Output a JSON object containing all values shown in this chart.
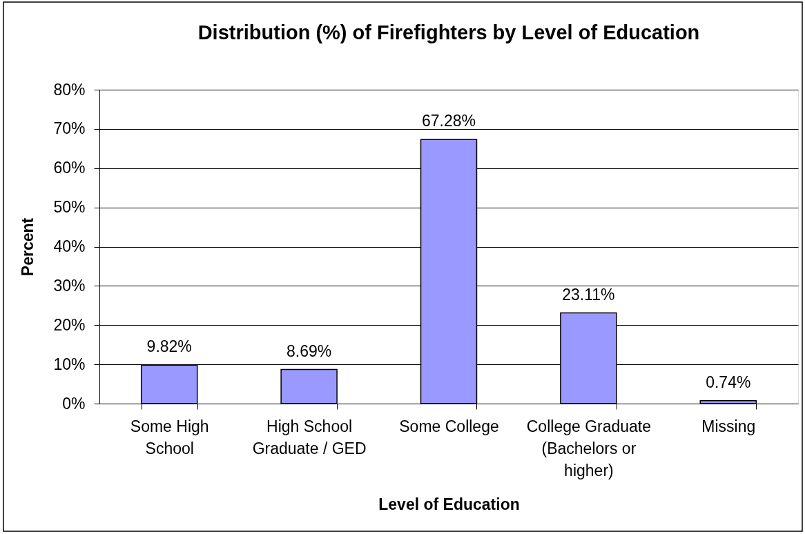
{
  "chart_data": {
    "type": "bar",
    "title": "Distribution (%) of Firefighters by Level of Education",
    "xlabel": "Level of Education",
    "ylabel": "Percent",
    "categories": [
      "Some High School",
      "High School Graduate / GED",
      "Some College",
      "College Graduate (Bachelors or higher)",
      "Missing"
    ],
    "values": [
      9.82,
      8.69,
      67.28,
      23.11,
      0.74
    ],
    "color": "#9999ff",
    "value_labels": [
      "9.82%",
      "8.69%",
      "67.28%",
      "23.11%",
      "0.74%"
    ],
    "ylim": [
      0,
      80
    ],
    "yticks": [
      {
        "value": 0,
        "label": "0%"
      },
      {
        "value": 10,
        "label": "10%"
      },
      {
        "value": 20,
        "label": "20%"
      },
      {
        "value": 30,
        "label": "30%"
      },
      {
        "value": 40,
        "label": "40%"
      },
      {
        "value": 50,
        "label": "50%"
      },
      {
        "value": 60,
        "label": "60%"
      },
      {
        "value": 70,
        "label": "70%"
      },
      {
        "value": 80,
        "label": "80%"
      }
    ],
    "grid": "y"
  }
}
